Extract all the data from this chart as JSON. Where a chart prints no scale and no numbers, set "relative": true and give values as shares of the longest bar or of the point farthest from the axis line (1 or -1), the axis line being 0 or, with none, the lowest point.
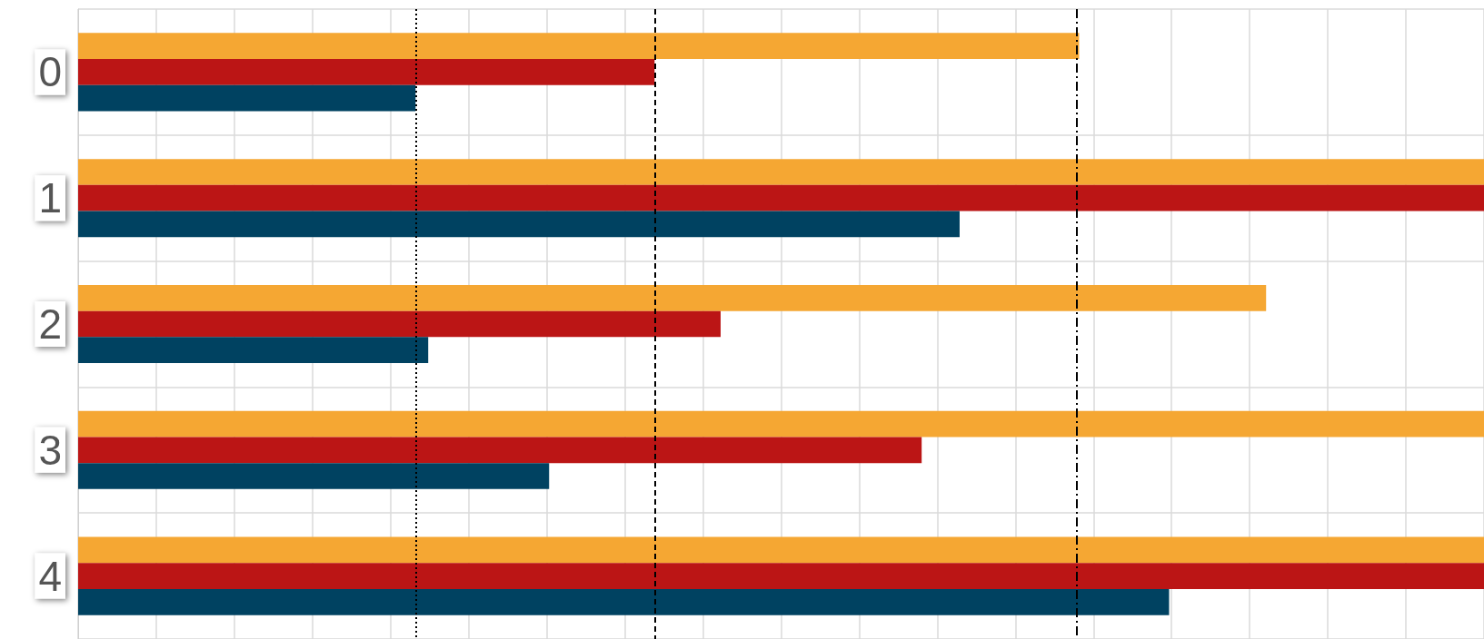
{
  "chart_data": {
    "type": "bar",
    "orientation": "horizontal",
    "relative": true,
    "grid": true,
    "categories": [
      "0",
      "1",
      "2",
      "3",
      "4"
    ],
    "series": [
      {
        "color": "#f5a733",
        "values": [
          0.712,
          1,
          0.845,
          1,
          1
        ]
      },
      {
        "color": "#bb1515",
        "values": [
          0.41,
          1,
          0.457,
          0.6,
          1
        ]
      },
      {
        "color": "#004261",
        "values": [
          0.24,
          0.627,
          0.249,
          0.335,
          0.776
        ]
      }
    ],
    "ref_lines": [
      {
        "axis": "x",
        "value": 0.24,
        "color": "#000000",
        "line_style": "dotted"
      },
      {
        "axis": "x",
        "value": 0.41,
        "color": "#000000",
        "line_style": "dashed"
      },
      {
        "axis": "x",
        "value": 0.712,
        "color": "#000000",
        "line_style": "dashdot"
      }
    ]
  }
}
